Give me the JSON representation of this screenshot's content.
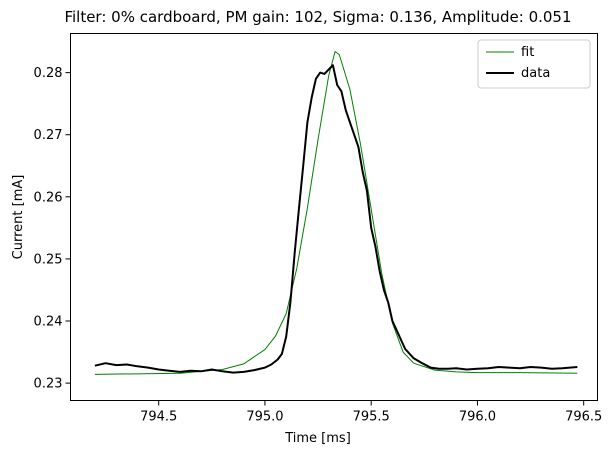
{
  "chart_data": {
    "type": "line",
    "title": "Filter: 0% cardboard, PM gain: 102, Sigma: 0.136, Amplitude: 0.051",
    "xlabel": "Time [ms]",
    "ylabel": "Current [mA]",
    "xlim": [
      794.085,
      796.565
    ],
    "ylim": [
      0.2272,
      0.2863
    ],
    "xticks": [
      794.5,
      795.0,
      795.5,
      796.0,
      796.5
    ],
    "xtick_labels": [
      "794.5",
      "795.0",
      "795.5",
      "796.0",
      "796.5"
    ],
    "yticks": [
      0.23,
      0.24,
      0.25,
      0.26,
      0.27,
      0.28
    ],
    "ytick_labels": [
      "0.23",
      "0.24",
      "0.25",
      "0.26",
      "0.27",
      "0.28"
    ],
    "grid": false,
    "legend": {
      "placement": "top-right",
      "entries": [
        "fit",
        "data"
      ]
    },
    "series": [
      {
        "name": "fit",
        "color": "#008000",
        "x": [
          794.2,
          794.6,
          794.8,
          794.9,
          795.0,
          795.05,
          795.1,
          795.15,
          795.2,
          795.25,
          795.3,
          795.33,
          795.35,
          795.4,
          795.45,
          795.5,
          795.55,
          795.6,
          795.65,
          795.7,
          795.8,
          795.9,
          796.0,
          796.2,
          796.47
        ],
        "y": [
          0.2314,
          0.2316,
          0.2322,
          0.2331,
          0.2354,
          0.2376,
          0.2412,
          0.2485,
          0.2582,
          0.2693,
          0.2795,
          0.2834,
          0.2829,
          0.2773,
          0.2684,
          0.258,
          0.2476,
          0.2397,
          0.235,
          0.2332,
          0.2321,
          0.2318,
          0.2317,
          0.2317,
          0.2316
        ]
      },
      {
        "name": "data",
        "color": "#000000",
        "x": [
          794.2,
          794.25,
          794.3,
          794.35,
          794.4,
          794.45,
          794.5,
          794.55,
          794.6,
          794.65,
          794.7,
          794.75,
          794.8,
          794.85,
          794.9,
          794.95,
          795.0,
          795.03,
          795.06,
          795.08,
          795.1,
          795.12,
          795.14,
          795.16,
          795.18,
          795.2,
          795.22,
          795.24,
          795.26,
          795.28,
          795.3,
          795.32,
          795.34,
          795.36,
          795.38,
          795.4,
          795.42,
          795.44,
          795.46,
          795.48,
          795.5,
          795.52,
          795.54,
          795.56,
          795.58,
          795.6,
          795.62,
          795.64,
          795.66,
          795.7,
          795.74,
          795.78,
          795.82,
          795.86,
          795.9,
          795.95,
          796.0,
          796.05,
          796.1,
          796.15,
          796.2,
          796.25,
          796.3,
          796.35,
          796.4,
          796.47
        ],
        "y": [
          0.2328,
          0.2332,
          0.2329,
          0.233,
          0.2327,
          0.2325,
          0.2322,
          0.232,
          0.2318,
          0.232,
          0.2319,
          0.2322,
          0.2319,
          0.2317,
          0.2318,
          0.2321,
          0.2325,
          0.233,
          0.2338,
          0.2347,
          0.2375,
          0.243,
          0.251,
          0.258,
          0.265,
          0.272,
          0.276,
          0.279,
          0.28,
          0.2798,
          0.2805,
          0.2812,
          0.278,
          0.277,
          0.274,
          0.272,
          0.27,
          0.268,
          0.264,
          0.261,
          0.255,
          0.252,
          0.248,
          0.245,
          0.243,
          0.24,
          0.2385,
          0.237,
          0.2355,
          0.234,
          0.2332,
          0.2325,
          0.2323,
          0.2323,
          0.2324,
          0.2322,
          0.2323,
          0.2324,
          0.2326,
          0.2325,
          0.2324,
          0.2326,
          0.2325,
          0.2323,
          0.2324,
          0.2326
        ]
      }
    ]
  }
}
